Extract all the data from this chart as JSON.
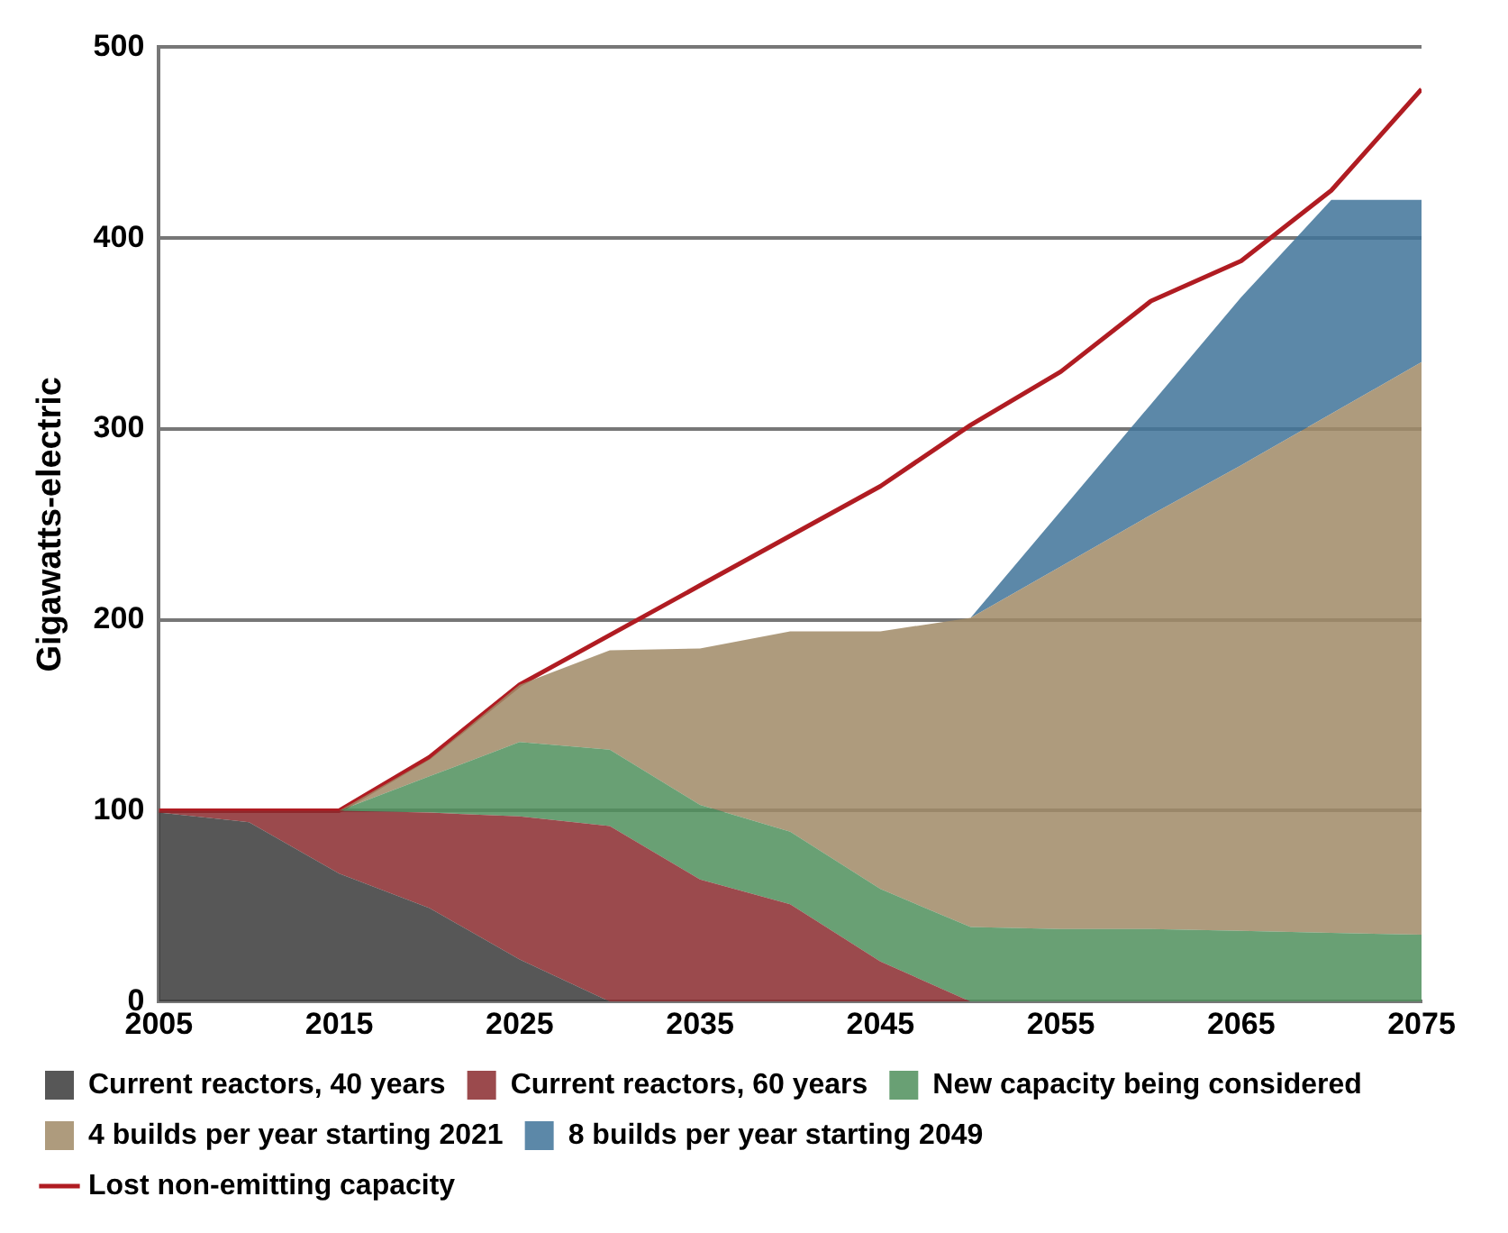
{
  "chart_data": {
    "type": "area",
    "stacked": true,
    "ylabel": "Gigawatts-electric",
    "x": [
      2005,
      2010,
      2015,
      2020,
      2025,
      2030,
      2035,
      2040,
      2045,
      2050,
      2055,
      2060,
      2065,
      2070,
      2075
    ],
    "xlim": [
      2005,
      2075
    ],
    "xticks": [
      2005,
      2015,
      2025,
      2035,
      2045,
      2055,
      2065,
      2075
    ],
    "ylim": [
      0,
      500
    ],
    "yticks": [
      0,
      100,
      200,
      300,
      400,
      500
    ],
    "grid": "y",
    "legend": "bottom",
    "series": [
      {
        "name": "Current reactors, 40 years",
        "color": "#3a3a3a",
        "values": [
          99,
          94,
          67,
          49,
          22,
          0,
          0,
          0,
          0,
          0,
          0,
          0,
          0,
          0,
          0
        ]
      },
      {
        "name": "Current reactors, 60 years",
        "color": "#8a2a2e",
        "values": [
          1,
          6,
          33,
          50,
          75,
          92,
          64,
          51,
          21,
          0,
          0,
          0,
          0,
          0,
          0
        ]
      },
      {
        "name": "New capacity being considered",
        "color": "#4f8f5c",
        "values": [
          0,
          0,
          0,
          19,
          39,
          40,
          39,
          38,
          38,
          39,
          38,
          38,
          37,
          36,
          35
        ]
      },
      {
        "name": "4 builds per year starting 2021",
        "color": "#a08a66",
        "values": [
          0,
          0,
          0,
          9,
          30,
          52,
          82,
          105,
          135,
          162,
          190,
          217,
          244,
          272,
          300
        ]
      },
      {
        "name": "8 builds per year starting 2049",
        "color": "#3f7399",
        "values": [
          null,
          null,
          null,
          null,
          null,
          null,
          null,
          null,
          null,
          0,
          29,
          58,
          88,
          112,
          85
        ]
      },
      {
        "name": "Lost non-emitting capacity",
        "type": "line",
        "color": "#b01c22",
        "values": [
          100,
          100,
          100,
          128,
          166,
          192,
          218,
          244,
          270,
          302,
          330,
          367,
          388,
          425,
          478
        ]
      }
    ]
  }
}
